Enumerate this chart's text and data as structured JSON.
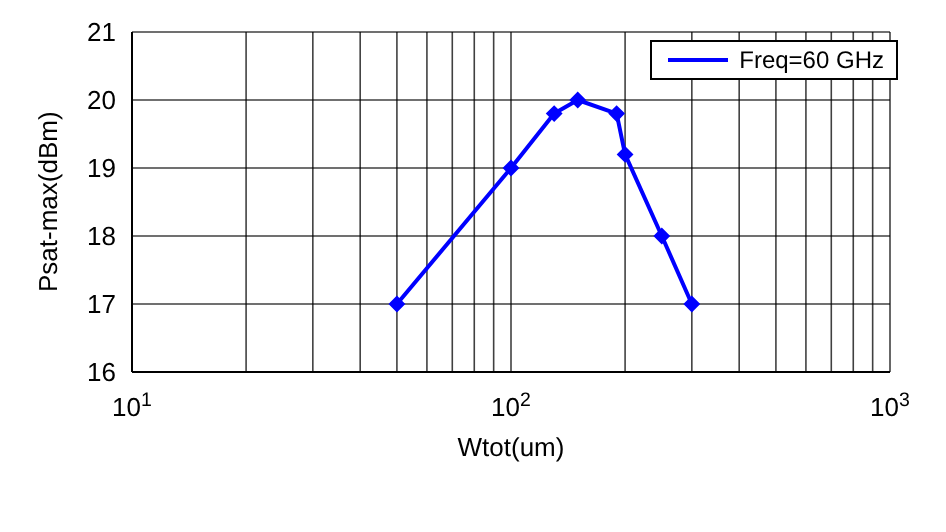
{
  "chart_data": {
    "type": "line",
    "xlabel": "Wtot(um)",
    "ylabel": "Psat-max(dBm)",
    "x": [
      50,
      100,
      130,
      150,
      190,
      200,
      250,
      300
    ],
    "series": [
      {
        "name": "Freq=60 GHz",
        "color": "#0000ff",
        "values": [
          17,
          19,
          19.8,
          20,
          19.8,
          19.2,
          18,
          17
        ]
      }
    ],
    "log": "x",
    "xlim": [
      10,
      1000
    ],
    "xticks": [
      {
        "value": 10,
        "label": "10$^{1}$"
      },
      {
        "value": 20,
        "label": null
      },
      {
        "value": 30,
        "label": null
      },
      {
        "value": 40,
        "label": null
      },
      {
        "value": 50,
        "label": null
      },
      {
        "value": 60,
        "label": null
      },
      {
        "value": 70,
        "label": null
      },
      {
        "value": 80,
        "label": null
      },
      {
        "value": 90,
        "label": null
      },
      {
        "value": 100,
        "label": "10$^{2}$"
      },
      {
        "value": 200,
        "label": null
      },
      {
        "value": 300,
        "label": null
      },
      {
        "value": 400,
        "label": null
      },
      {
        "value": 500,
        "label": null
      },
      {
        "value": 600,
        "label": null
      },
      {
        "value": 700,
        "label": null
      },
      {
        "value": 800,
        "label": null
      },
      {
        "value": 900,
        "label": null
      },
      {
        "value": 1000,
        "label": "10$^{3}$"
      }
    ],
    "ylim": [
      16,
      21
    ],
    "yticks": [
      16,
      17,
      18,
      19,
      20,
      21
    ],
    "grid": true,
    "legend": "top right",
    "marker": "diamond",
    "line_style": "solid"
  }
}
